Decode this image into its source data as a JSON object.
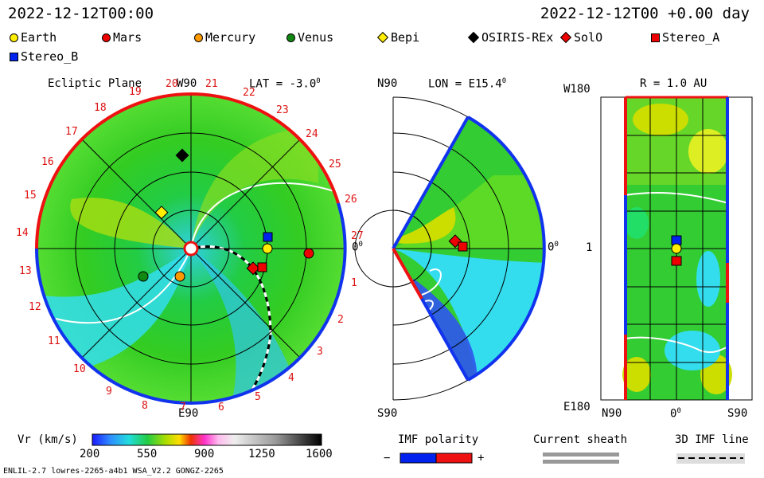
{
  "header": {
    "date_left": "2022-12-12T00:00",
    "date_right": "2022-12-12T00 +0.00 day"
  },
  "legend": [
    {
      "name": "Earth",
      "shape": "circle",
      "color": "#ffee00"
    },
    {
      "name": "Mars",
      "shape": "circle",
      "color": "#ee0000"
    },
    {
      "name": "Mercury",
      "shape": "circle",
      "color": "#ff9900"
    },
    {
      "name": "Venus",
      "shape": "circle",
      "color": "#118811"
    },
    {
      "name": "Bepi",
      "shape": "diamond",
      "color": "#ffee00"
    },
    {
      "name": "OSIRIS-REx",
      "shape": "diamond",
      "color": "#000000"
    },
    {
      "name": "SolO",
      "shape": "diamond",
      "color": "#ee0000"
    },
    {
      "name": "Stereo_A",
      "shape": "square",
      "color": "#ee0000"
    },
    {
      "name": "Stereo_B",
      "shape": "square",
      "color": "#0022ee"
    }
  ],
  "ecliptic": {
    "title": "Ecliptic Plane",
    "top_label": "W90",
    "bottom_label": "E90",
    "right_label": "0",
    "lat_label": "LAT = -3.0",
    "numbers": [
      "1",
      "2",
      "3",
      "4",
      "5",
      "6",
      "7",
      "8",
      "9",
      "10",
      "11",
      "12",
      "13",
      "14",
      "15",
      "16",
      "17",
      "18",
      "19",
      "20",
      "21",
      "22",
      "23",
      "24",
      "25",
      "26",
      "27"
    ]
  },
  "meridional": {
    "title": "LON = E15.4",
    "top_label": "N90",
    "bottom_label": "S90",
    "right_label": "0"
  },
  "latlon": {
    "title": "R = 1.0 AU",
    "top_left_label": "W180",
    "mid_left_label": "1",
    "bottom_left_label": "E180",
    "bottom_left_x": "N90",
    "bottom_mid_x": "0",
    "bottom_right_x": "S90"
  },
  "colorbar": {
    "label": "Vr (km/s)",
    "ticks": [
      "200",
      "550",
      "900",
      "1250",
      "1600"
    ]
  },
  "imf": {
    "title": "IMF polarity",
    "minus": "−",
    "plus": "+"
  },
  "sheath": {
    "title": "Current sheath"
  },
  "imf3d": {
    "title": "3D IMF line"
  },
  "footer": {
    "left": "ENLIL-2.7 lowres-2265-a4b1 WSA_V2.2 GONGZ-2265"
  }
}
